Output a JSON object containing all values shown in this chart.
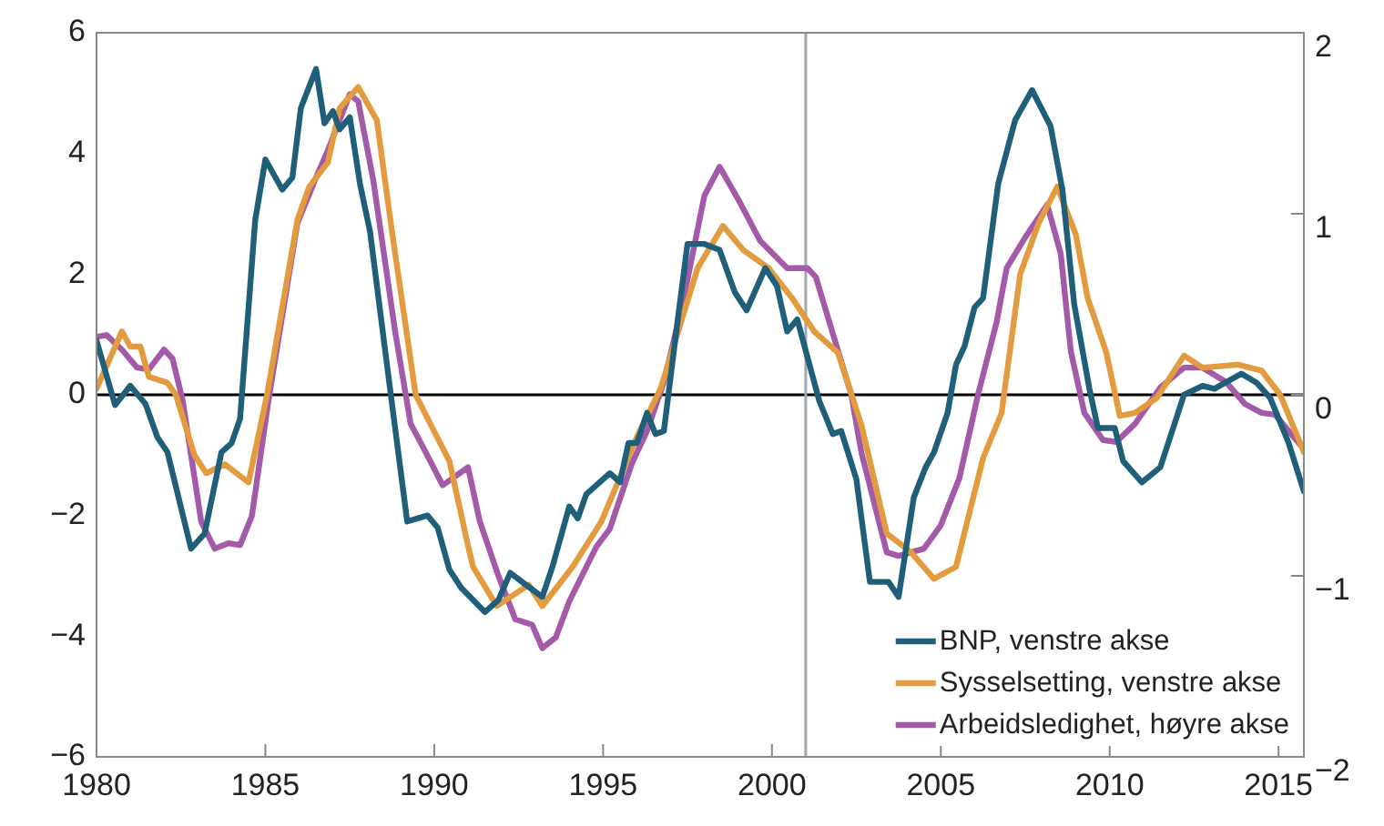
{
  "chart_data": {
    "type": "line",
    "xlim": [
      1980,
      2015.75
    ],
    "xticks": [
      1980,
      1985,
      1990,
      1995,
      2000,
      2005,
      2010,
      2015
    ],
    "ylim": [
      -6,
      6
    ],
    "yticks": [
      -6,
      -4,
      -2,
      0,
      2,
      4,
      6
    ],
    "y2lim": [
      -2,
      2
    ],
    "y2ticks": [
      -2,
      -1,
      0,
      1,
      2
    ],
    "grid": false,
    "legend": "bottom right",
    "marker": "none",
    "line_style": "solid",
    "ref_lines": [
      {
        "axis": "y",
        "value": 0,
        "color": "#000000"
      },
      {
        "axis": "x",
        "value": 2001,
        "color": "#a0a8b0"
      }
    ],
    "series": [
      {
        "name": "BNP, venstre akse",
        "color": "#1f5f7a",
        "x": [
          1980,
          1980.55,
          1981,
          1981.45,
          1981.8,
          1982.1,
          1982.8,
          1983.2,
          1983.7,
          1984,
          1984.25,
          1984.7,
          1985,
          1985.5,
          1985.8,
          1986.05,
          1986.5,
          1986.75,
          1987,
          1987.2,
          1987.5,
          1987.8,
          1988.1,
          1988.6,
          1989.2,
          1989.8,
          1990.1,
          1990.45,
          1990.8,
          1991.5,
          1991.9,
          1992.25,
          1992.6,
          1993.2,
          1993.5,
          1994,
          1994.25,
          1994.5,
          1995.2,
          1995.5,
          1995.75,
          1996,
          1996.3,
          1996.55,
          1996.8,
          1997.2,
          1997.5,
          1998,
          1998.45,
          1998.9,
          1999.25,
          1999.8,
          2000.15,
          2000.45,
          2000.75,
          2001.4,
          2001.8,
          2002.05,
          2002.5,
          2002.9,
          2003.45,
          2003.75,
          2004.2,
          2004.55,
          2004.8,
          2005.2,
          2005.45,
          2005.7,
          2006,
          2006.25,
          2006.7,
          2007.2,
          2007.7,
          2008.25,
          2008.6,
          2008.95,
          2009.4,
          2009.65,
          2010.15,
          2010.4,
          2010.95,
          2011.5,
          2012.2,
          2012.75,
          2013.1,
          2013.9,
          2014.35,
          2014.75,
          2015.3,
          2015.75
        ],
        "values": [
          0.9,
          -0.17,
          0.15,
          -0.15,
          -0.7,
          -0.95,
          -2.55,
          -2.3,
          -0.95,
          -0.8,
          -0.4,
          2.9,
          3.9,
          3.4,
          3.6,
          4.75,
          5.4,
          4.5,
          4.7,
          4.4,
          4.6,
          3.5,
          2.7,
          0.5,
          -2.1,
          -2,
          -2.2,
          -2.9,
          -3.2,
          -3.6,
          -3.4,
          -2.95,
          -3.1,
          -3.35,
          -2.85,
          -1.85,
          -2.05,
          -1.65,
          -1.3,
          -1.45,
          -0.8,
          -0.8,
          -0.3,
          -0.65,
          -0.6,
          1.2,
          2.5,
          2.5,
          2.4,
          1.7,
          1.4,
          2.1,
          1.8,
          1.05,
          1.25,
          -0.1,
          -0.65,
          -0.6,
          -1.4,
          -3.1,
          -3.1,
          -3.35,
          -1.7,
          -1.2,
          -0.95,
          -0.3,
          0.5,
          0.8,
          1.45,
          1.6,
          3.5,
          4.55,
          5.05,
          4.45,
          3.4,
          1.5,
          0.1,
          -0.55,
          -0.55,
          -1.1,
          -1.45,
          -1.2,
          0,
          0.15,
          0.1,
          0.35,
          0.2,
          -0.05,
          -0.8,
          -1.6
        ]
      },
      {
        "name": "Sysselsetting, venstre akse",
        "color": "#e39b3f",
        "x": [
          1980,
          1980.75,
          1981,
          1981.3,
          1981.55,
          1982.1,
          1982.35,
          1982.9,
          1983.25,
          1983.8,
          1984.5,
          1985.05,
          1985.95,
          1986.3,
          1986.85,
          1987.2,
          1987.75,
          1988.3,
          1988.75,
          1989.45,
          1989.9,
          1990.45,
          1991,
          1991.15,
          1991.85,
          1992.8,
          1993.2,
          1994.1,
          1994.95,
          1996,
          1996.7,
          1997.8,
          1998.55,
          1999.15,
          1999.9,
          2000.6,
          2001.25,
          2001.95,
          2002.65,
          2003.4,
          2004.1,
          2004.8,
          2005.45,
          2006.25,
          2006.8,
          2007.35,
          2007.9,
          2008.45,
          2009,
          2009.35,
          2009.9,
          2010.3,
          2010.75,
          2011.4,
          2012.2,
          2012.75,
          2013.8,
          2014.5,
          2015.05,
          2015.75
        ],
        "values": [
          0.1,
          1.05,
          0.8,
          0.8,
          0.3,
          0.2,
          0,
          -1,
          -1.3,
          -1.15,
          -1.45,
          0,
          2.9,
          3.45,
          3.85,
          4.75,
          5.1,
          4.55,
          2.7,
          0,
          -0.5,
          -1.1,
          -2.5,
          -2.85,
          -3.5,
          -3.15,
          -3.5,
          -2.85,
          -2.1,
          -0.7,
          0.1,
          2.1,
          2.8,
          2.4,
          2.1,
          1.6,
          1.05,
          0.7,
          -0.5,
          -2.3,
          -2.6,
          -3.05,
          -2.85,
          -1.05,
          -0.3,
          2,
          2.85,
          3.45,
          2.65,
          1.6,
          0.7,
          -0.35,
          -0.3,
          -0.05,
          0.65,
          0.45,
          0.5,
          0.4,
          0,
          -0.95
        ]
      },
      {
        "name": "Arbeidsledighet, høyre akse",
        "color": "#a35aa8",
        "axis": "y2",
        "x": [
          1980,
          1980.3,
          1980.75,
          1981.2,
          1981.55,
          1982,
          1982.25,
          1982.55,
          1983.1,
          1983.5,
          1983.9,
          1984.25,
          1984.6,
          1985.1,
          1985.95,
          1986.5,
          1986.85,
          1987.5,
          1987.75,
          1988.2,
          1988.85,
          1989.3,
          1989.7,
          1990.25,
          1991,
          1991.35,
          1991.9,
          1992.4,
          1992.9,
          1993.2,
          1993.6,
          1994,
          1994.8,
          1995.2,
          1995.85,
          1996.3,
          1996.8,
          1997.35,
          1998,
          1998.45,
          1999,
          1999.65,
          2000.45,
          2001.05,
          2001.3,
          2001.8,
          2002.35,
          2002.65,
          2003.4,
          2003.75,
          2004.5,
          2005,
          2005.55,
          2006.1,
          2006.65,
          2006.95,
          2007.5,
          2008.15,
          2008.55,
          2008.85,
          2009.25,
          2009.8,
          2010.2,
          2010.75,
          2011.5,
          2012.2,
          2012.75,
          2013.45,
          2014,
          2014.5,
          2014.9,
          2015.75
        ],
        "values": [
          0.32,
          0.33,
          0.25,
          0.15,
          0.14,
          0.25,
          0.2,
          -0.03,
          -0.7,
          -0.85,
          -0.82,
          -0.83,
          -0.67,
          -0.02,
          0.95,
          1.2,
          1.35,
          1.66,
          1.62,
          1.18,
          0.34,
          -0.16,
          -0.3,
          -0.5,
          -0.4,
          -0.7,
          -1,
          -1.24,
          -1.27,
          -1.4,
          -1.34,
          -1.14,
          -0.84,
          -0.74,
          -0.38,
          -0.2,
          0.07,
          0.5,
          1.1,
          1.26,
          1.08,
          0.85,
          0.7,
          0.7,
          0.65,
          0.34,
          0,
          -0.32,
          -0.87,
          -0.89,
          -0.85,
          -0.72,
          -0.46,
          0,
          0.4,
          0.7,
          0.87,
          1.05,
          0.78,
          0.24,
          -0.1,
          -0.25,
          -0.26,
          -0.16,
          0.04,
          0.15,
          0.15,
          0.07,
          -0.05,
          -0.1,
          -0.11,
          -0.3
        ]
      }
    ]
  }
}
